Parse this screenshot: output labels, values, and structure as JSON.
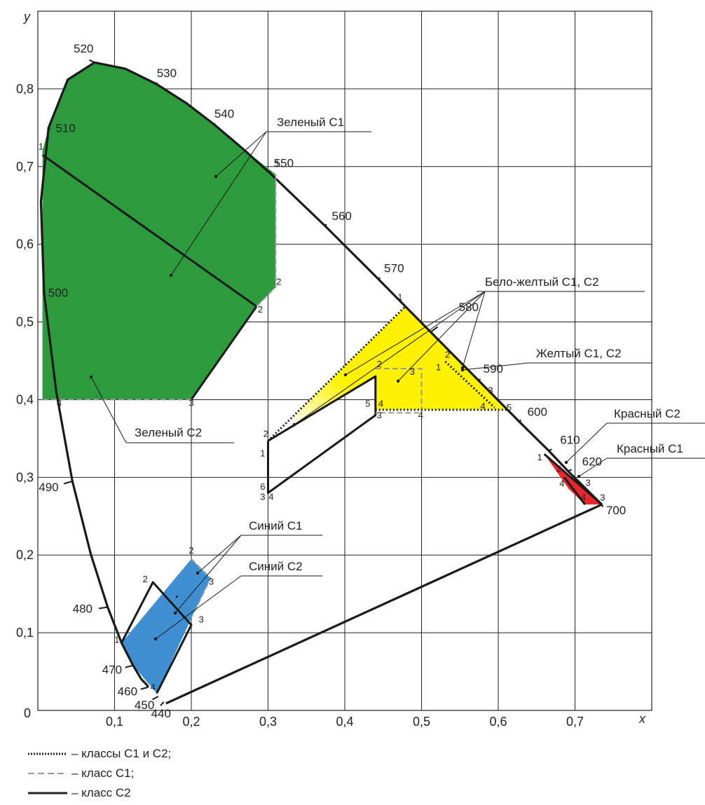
{
  "axes": {
    "x_name": "x",
    "y_name": "y",
    "origin_label": "0",
    "x_ticks": [
      "0,1",
      "0,2",
      "0,3",
      "0,4",
      "0,5",
      "0,6",
      "0,7"
    ],
    "y_ticks": [
      "0,1",
      "0,2",
      "0,3",
      "0,4",
      "0,5",
      "0,6",
      "0,7",
      "0,8"
    ]
  },
  "wavelength_labels": [
    "440",
    "450",
    "460",
    "470",
    "480",
    "490",
    "500",
    "510",
    "520",
    "530",
    "540",
    "550",
    "560",
    "570",
    "580",
    "590",
    "600",
    "610",
    "620",
    "700"
  ],
  "regions": {
    "green_c1": "Зеленый С1",
    "green_c2": "Зеленый С2",
    "white_yellow": "Бело-желтый С1, С2",
    "yellow": "Желтый С1, С2",
    "red_c2": "Красный С2",
    "red_c1": "Красный С1",
    "blue_c1": "Синий С1",
    "blue_c2": "Синий С2"
  },
  "colors": {
    "green": "#2e9a3e",
    "yellow": "#fff200",
    "blue": "#3f8fd2",
    "red": "#e8262b",
    "grid": "#222222"
  },
  "legend": [
    {
      "style": "dotted",
      "label": "– классы С1 и С2;"
    },
    {
      "style": "dashed",
      "label": "– класс С1;"
    },
    {
      "style": "solid",
      "label": "– класс С2"
    }
  ],
  "chart_data": {
    "type": "scatter",
    "xlim": [
      0,
      0.8
    ],
    "ylim": [
      0,
      0.9
    ],
    "grid": true,
    "locus": [
      [
        0.144,
        0.03
      ],
      [
        0.141,
        0.034
      ],
      [
        0.135,
        0.04
      ],
      [
        0.124,
        0.058
      ],
      [
        0.109,
        0.087
      ],
      [
        0.091,
        0.133
      ],
      [
        0.069,
        0.201
      ],
      [
        0.045,
        0.295
      ],
      [
        0.024,
        0.41
      ],
      [
        0.008,
        0.538
      ],
      [
        0.004,
        0.655
      ],
      [
        0.014,
        0.75
      ],
      [
        0.039,
        0.812
      ],
      [
        0.074,
        0.834
      ],
      [
        0.114,
        0.826
      ],
      [
        0.155,
        0.806
      ],
      [
        0.193,
        0.782
      ],
      [
        0.23,
        0.754
      ],
      [
        0.266,
        0.724
      ],
      [
        0.302,
        0.692
      ],
      [
        0.374,
        0.624
      ],
      [
        0.444,
        0.555
      ],
      [
        0.512,
        0.487
      ],
      [
        0.575,
        0.424
      ],
      [
        0.627,
        0.372
      ],
      [
        0.666,
        0.334
      ],
      [
        0.691,
        0.308
      ],
      [
        0.735,
        0.265
      ]
    ],
    "purple_line": [
      [
        0.735,
        0.265
      ],
      [
        0.167,
        0.009
      ]
    ],
    "wavelength_points": [
      {
        "nm": "440",
        "x": 0.164,
        "y": 0.011
      },
      {
        "nm": "450",
        "x": 0.157,
        "y": 0.018
      },
      {
        "nm": "460",
        "x": 0.144,
        "y": 0.03
      },
      {
        "nm": "470",
        "x": 0.124,
        "y": 0.058
      },
      {
        "nm": "480",
        "x": 0.091,
        "y": 0.133
      },
      {
        "nm": "490",
        "x": 0.045,
        "y": 0.295
      },
      {
        "nm": "500",
        "x": 0.008,
        "y": 0.538
      },
      {
        "nm": "510",
        "x": 0.014,
        "y": 0.75
      },
      {
        "nm": "520",
        "x": 0.074,
        "y": 0.834
      },
      {
        "nm": "530",
        "x": 0.155,
        "y": 0.806
      },
      {
        "nm": "540",
        "x": 0.23,
        "y": 0.754
      },
      {
        "nm": "550",
        "x": 0.302,
        "y": 0.692
      },
      {
        "nm": "560",
        "x": 0.374,
        "y": 0.624
      },
      {
        "nm": "570",
        "x": 0.444,
        "y": 0.555
      },
      {
        "nm": "580",
        "x": 0.512,
        "y": 0.487
      },
      {
        "nm": "590",
        "x": 0.575,
        "y": 0.424
      },
      {
        "nm": "600",
        "x": 0.627,
        "y": 0.372
      },
      {
        "nm": "610",
        "x": 0.666,
        "y": 0.334
      },
      {
        "nm": "620",
        "x": 0.691,
        "y": 0.308
      },
      {
        "nm": "700",
        "x": 0.735,
        "y": 0.265
      }
    ],
    "polygons": [
      {
        "id": "green",
        "color": "#2e9a3e",
        "points": [
          [
            0.006,
            0.4
          ],
          [
            0.006,
            0.72
          ],
          [
            0.014,
            0.75
          ],
          [
            0.039,
            0.812
          ],
          [
            0.074,
            0.834
          ],
          [
            0.114,
            0.826
          ],
          [
            0.155,
            0.806
          ],
          [
            0.193,
            0.782
          ],
          [
            0.23,
            0.754
          ],
          [
            0.266,
            0.724
          ],
          [
            0.31,
            0.69
          ],
          [
            0.31,
            0.545
          ],
          [
            0.285,
            0.52
          ],
          [
            0.2,
            0.4
          ]
        ]
      },
      {
        "id": "yellow",
        "color": "#fff200",
        "points": [
          [
            0.479,
            0.52
          ],
          [
            0.575,
            0.424
          ],
          [
            0.612,
            0.387
          ],
          [
            0.44,
            0.387
          ],
          [
            0.44,
            0.43
          ],
          [
            0.3,
            0.347
          ]
        ]
      },
      {
        "id": "blue",
        "color": "#3f8fd2",
        "points": [
          [
            0.109,
            0.087
          ],
          [
            0.2,
            0.195
          ],
          [
            0.225,
            0.17
          ],
          [
            0.203,
            0.125
          ],
          [
            0.155,
            0.022
          ],
          [
            0.124,
            0.058
          ]
        ]
      },
      {
        "id": "red",
        "color": "#e8262b",
        "points": [
          [
            0.66,
            0.33
          ],
          [
            0.735,
            0.265
          ],
          [
            0.713,
            0.265
          ],
          [
            0.692,
            0.285
          ]
        ]
      }
    ],
    "lines": [
      {
        "style": "solid",
        "points": [
          [
            0.006,
            0.715
          ],
          [
            0.285,
            0.52
          ]
        ]
      },
      {
        "style": "solid",
        "points": [
          [
            0.285,
            0.52
          ],
          [
            0.2,
            0.4
          ]
        ]
      },
      {
        "style": "dashed",
        "points": [
          [
            0.31,
            0.69
          ],
          [
            0.31,
            0.545
          ],
          [
            0.285,
            0.52
          ]
        ]
      },
      {
        "style": "dashed",
        "points": [
          [
            0.2,
            0.4
          ],
          [
            0.006,
            0.4
          ]
        ]
      },
      {
        "style": "solid",
        "points": [
          [
            0.3,
            0.347
          ],
          [
            0.3,
            0.28
          ],
          [
            0.44,
            0.38
          ],
          [
            0.44,
            0.43
          ],
          [
            0.3,
            0.347
          ]
        ]
      },
      {
        "style": "dashed",
        "points": [
          [
            0.44,
            0.44
          ],
          [
            0.5,
            0.44
          ],
          [
            0.5,
            0.383
          ],
          [
            0.44,
            0.383
          ]
        ]
      },
      {
        "style": "dotted",
        "points": [
          [
            0.3,
            0.347
          ],
          [
            0.479,
            0.52
          ]
        ]
      },
      {
        "style": "dotted",
        "points": [
          [
            0.44,
            0.387
          ],
          [
            0.612,
            0.387
          ]
        ]
      },
      {
        "style": "dotted",
        "points": [
          [
            0.531,
            0.449
          ],
          [
            0.595,
            0.39
          ]
        ]
      },
      {
        "style": "solid",
        "points": [
          [
            0.109,
            0.087
          ],
          [
            0.15,
            0.165
          ],
          [
            0.2,
            0.11
          ],
          [
            0.155,
            0.022
          ]
        ]
      },
      {
        "style": "solid",
        "points": [
          [
            0.18,
            0.147
          ],
          [
            0.182,
            0.146
          ]
        ]
      },
      {
        "style": "dashed",
        "points": [
          [
            0.2,
            0.195
          ],
          [
            0.225,
            0.17
          ],
          [
            0.203,
            0.125
          ]
        ]
      },
      {
        "style": "solid",
        "points": [
          [
            0.66,
            0.33
          ],
          [
            0.735,
            0.265
          ]
        ]
      },
      {
        "style": "solid",
        "points": [
          [
            0.686,
            0.3
          ],
          [
            0.713,
            0.265
          ]
        ]
      }
    ],
    "corner_labels": [
      {
        "t": "1",
        "x": 0.004,
        "y": 0.722
      },
      {
        "t": "2",
        "x": 0.29,
        "y": 0.512
      },
      {
        "t": "3",
        "x": 0.2,
        "y": 0.392
      },
      {
        "t": "4",
        "x": 0.028,
        "y": 0.392
      },
      {
        "t": "1",
        "x": 0.312,
        "y": 0.7
      },
      {
        "t": "2",
        "x": 0.314,
        "y": 0.548
      },
      {
        "t": "1",
        "x": 0.472,
        "y": 0.528
      },
      {
        "t": "2",
        "x": 0.534,
        "y": 0.454
      },
      {
        "t": "1",
        "x": 0.522,
        "y": 0.438
      },
      {
        "t": "3",
        "x": 0.59,
        "y": 0.408
      },
      {
        "t": "4",
        "x": 0.58,
        "y": 0.388
      },
      {
        "t": "5",
        "x": 0.614,
        "y": 0.386
      },
      {
        "t": "2",
        "x": 0.297,
        "y": 0.352
      },
      {
        "t": "1",
        "x": 0.293,
        "y": 0.327
      },
      {
        "t": "6",
        "x": 0.293,
        "y": 0.284
      },
      {
        "t": "3",
        "x": 0.293,
        "y": 0.271
      },
      {
        "t": "4",
        "x": 0.304,
        "y": 0.271
      },
      {
        "t": "2",
        "x": 0.445,
        "y": 0.442
      },
      {
        "t": "3",
        "x": 0.488,
        "y": 0.432
      },
      {
        "t": "5",
        "x": 0.43,
        "y": 0.391
      },
      {
        "t": "4",
        "x": 0.447,
        "y": 0.391
      },
      {
        "t": "3",
        "x": 0.445,
        "y": 0.376
      },
      {
        "t": "4",
        "x": 0.499,
        "y": 0.376
      },
      {
        "t": "1",
        "x": 0.103,
        "y": 0.087
      },
      {
        "t": "2",
        "x": 0.14,
        "y": 0.165
      },
      {
        "t": "2",
        "x": 0.2,
        "y": 0.202
      },
      {
        "t": "3",
        "x": 0.226,
        "y": 0.162
      },
      {
        "t": "3",
        "x": 0.213,
        "y": 0.113
      },
      {
        "t": "4",
        "x": 0.15,
        "y": 0.026
      },
      {
        "t": "1",
        "x": 0.654,
        "y": 0.322
      },
      {
        "t": "2",
        "x": 0.679,
        "y": 0.307
      },
      {
        "t": "3",
        "x": 0.717,
        "y": 0.289
      },
      {
        "t": "4",
        "x": 0.683,
        "y": 0.288
      },
      {
        "t": "3",
        "x": 0.736,
        "y": 0.27
      },
      {
        "t": "4",
        "x": 0.711,
        "y": 0.27
      }
    ]
  }
}
